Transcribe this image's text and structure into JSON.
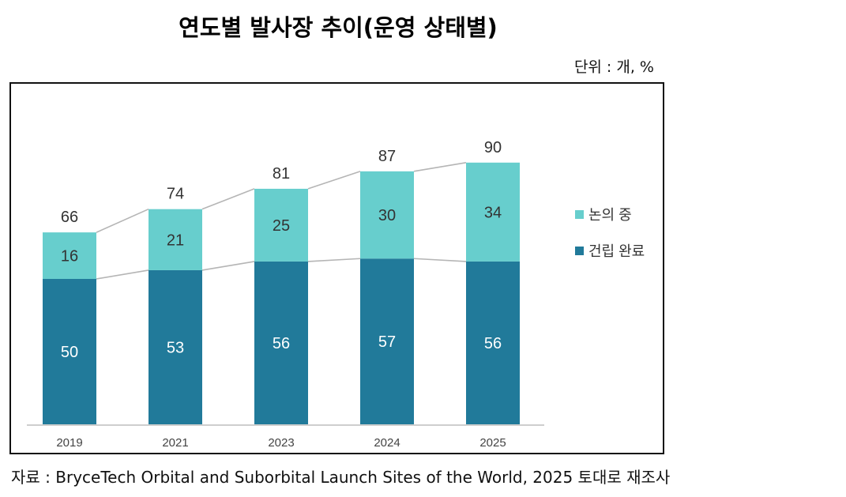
{
  "title": "연도별 발사장 추이(운영 상태별)",
  "unit": "단위 : 개, %",
  "source": "자료 : BryceTech Orbital and Suborbital Launch Sites of the World, 2025 토대로 재조사",
  "colors": {
    "built": "#217a9a",
    "planned": "#67cecd",
    "connector": "#b5b5b5",
    "axis": "#bdbdbd"
  },
  "chart_data": {
    "type": "bar",
    "stacked": true,
    "categories": [
      "2019",
      "2021",
      "2023",
      "2024",
      "2025"
    ],
    "series": [
      {
        "name": "건립 완료",
        "values": [
          50,
          53,
          56,
          57,
          56
        ]
      },
      {
        "name": "논의 중",
        "values": [
          16,
          21,
          25,
          30,
          34
        ]
      }
    ],
    "totals": [
      66,
      74,
      81,
      87,
      90
    ],
    "legend": [
      "논의 중",
      "건립 완료"
    ],
    "legend_position": "right",
    "ylim": [
      0,
      100
    ],
    "grid": false
  }
}
